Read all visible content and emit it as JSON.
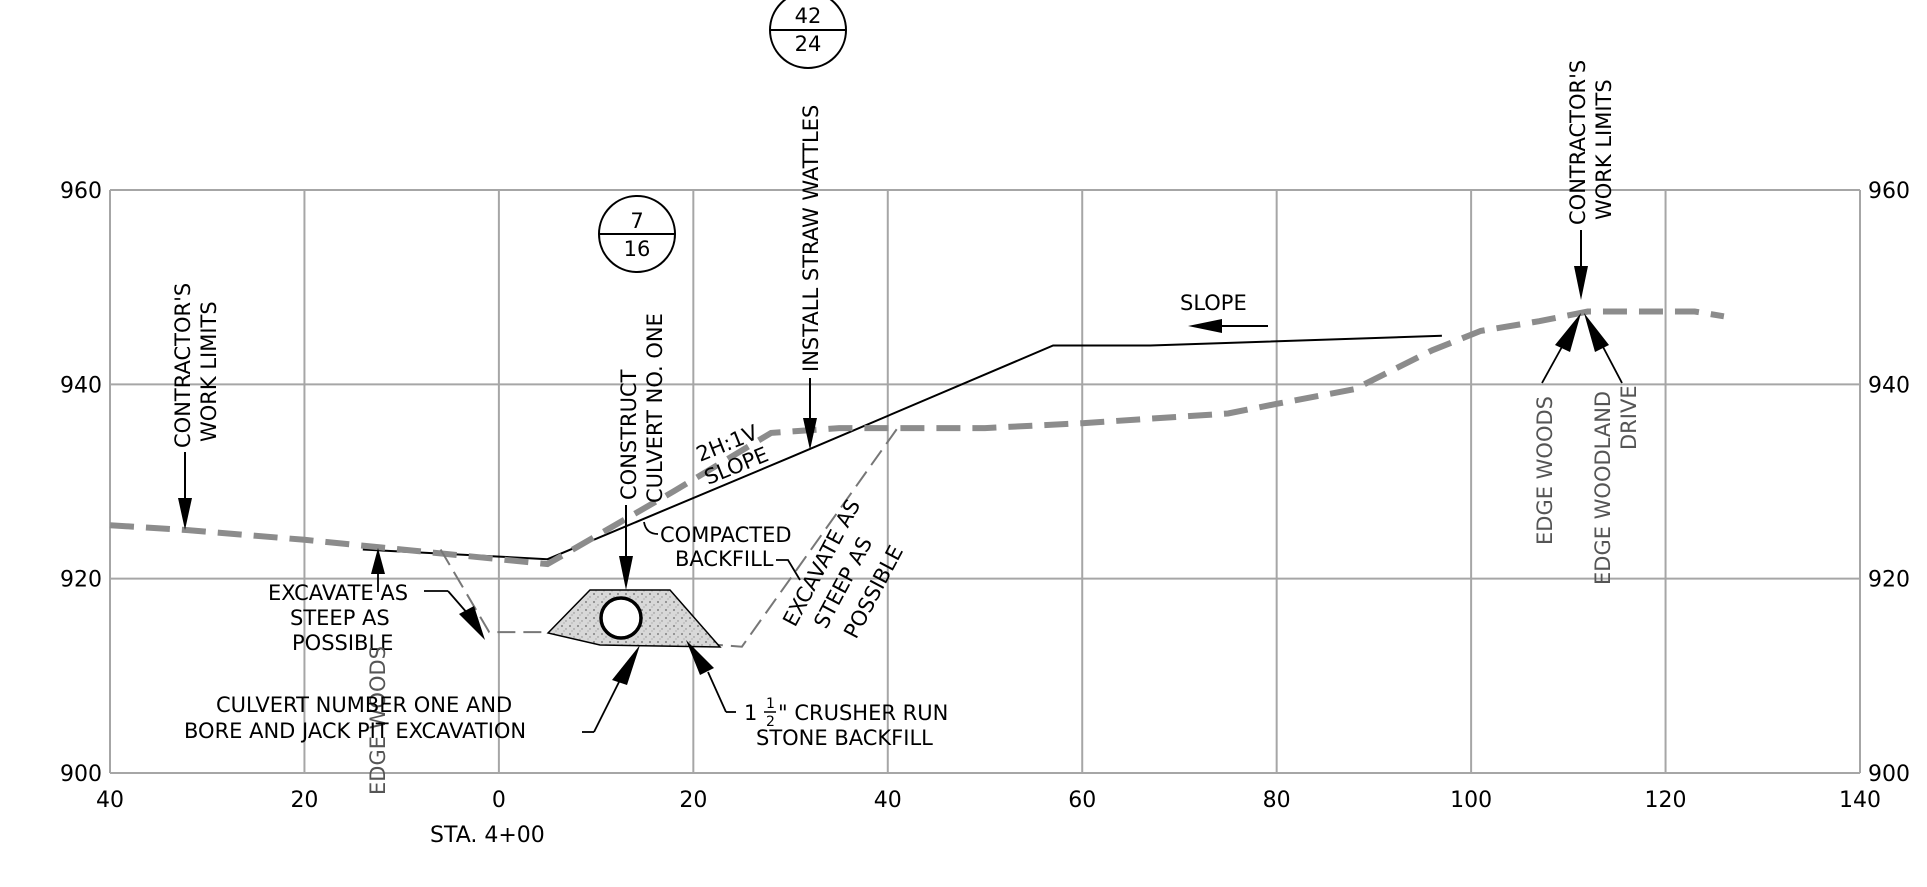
{
  "chart_data": {
    "type": "line",
    "station": "STA. 4+00",
    "x_ticks": [
      "40",
      "20",
      "0",
      "20",
      "40",
      "60",
      "80",
      "100",
      "120",
      "140"
    ],
    "y_ticks": [
      "960",
      "940",
      "920",
      "900"
    ],
    "xlim": [
      -40,
      140
    ],
    "ylim": [
      900,
      960
    ],
    "grid": true,
    "series": [
      {
        "role": "proposed-grade",
        "style": "solid-black",
        "x": [
          -14,
          5,
          30,
          57,
          67,
          97
        ],
        "y": [
          923,
          922,
          932.5,
          944,
          944,
          945
        ]
      },
      {
        "role": "existing-ground",
        "style": "dashed-gray",
        "x": [
          -40,
          -32,
          -20,
          -10,
          0,
          5,
          18,
          28,
          35,
          50,
          60,
          75,
          80,
          88,
          96,
          101,
          107,
          112,
          118,
          123,
          126
        ],
        "y": [
          925.5,
          925,
          924,
          923,
          922,
          921.5,
          929,
          935,
          935.5,
          935.5,
          936,
          937,
          938,
          939.5,
          943.5,
          945.5,
          946.5,
          947.5,
          947.5,
          947.5,
          947
        ]
      },
      {
        "role": "excavation-limits",
        "style": "thin-dashed-gray",
        "x": [
          -6,
          -1,
          5,
          25,
          41
        ],
        "y": [
          923,
          914.5,
          914.5,
          913,
          935.5
        ]
      }
    ]
  },
  "callouts": {
    "detail_top": {
      "top": "42",
      "bottom": "24"
    },
    "detail_mid": {
      "top": "7",
      "bottom": "16"
    }
  },
  "labels": {
    "work_limits_left_1": "CONTRACTOR'S",
    "work_limits_left_2": "WORK  LIMITS",
    "work_limits_right_1": "CONTRACTOR'S",
    "work_limits_right_2": "WORK  LIMITS",
    "construct_1": "CONSTRUCT",
    "construct_2": "CULVERT NO. ONE",
    "straw_wattles": "INSTALL STRAW WATTLES",
    "slope_ratio": "2H:1V",
    "slope_word": "SLOPE",
    "slope_arrow": "SLOPE",
    "compacted_1": "COMPACTED",
    "compacted_2": "BACKFILL",
    "excavate_left_1": "EXCAVATE AS",
    "excavate_left_2": "STEEP AS",
    "excavate_left_3": "POSSIBLE",
    "excavate_right_1": "EXCAVATE AS",
    "excavate_right_2": "STEEP AS",
    "excavate_right_3": "POSSIBLE",
    "edge_woods_left": "EDGE WOODS",
    "edge_woods_right": "EDGE  WOODS",
    "edge_woodland_1": "EDGE  WOODLAND",
    "edge_woodland_2": "DRIVE",
    "culvert_1": "CULVERT  NUMBER  ONE  AND",
    "culvert_2": "BORE  AND  JACK  PIT  EXCAVATION",
    "crusher_1": "1",
    "crusher_num": "1",
    "crusher_den": "2",
    "crusher_2": "\"  CRUSHER  RUN",
    "crusher_3": "STONE  BACKFILL"
  },
  "colors": {
    "grid": "#a6a6a6",
    "existing_ground": "#8c8c8c",
    "line": "#000000"
  }
}
